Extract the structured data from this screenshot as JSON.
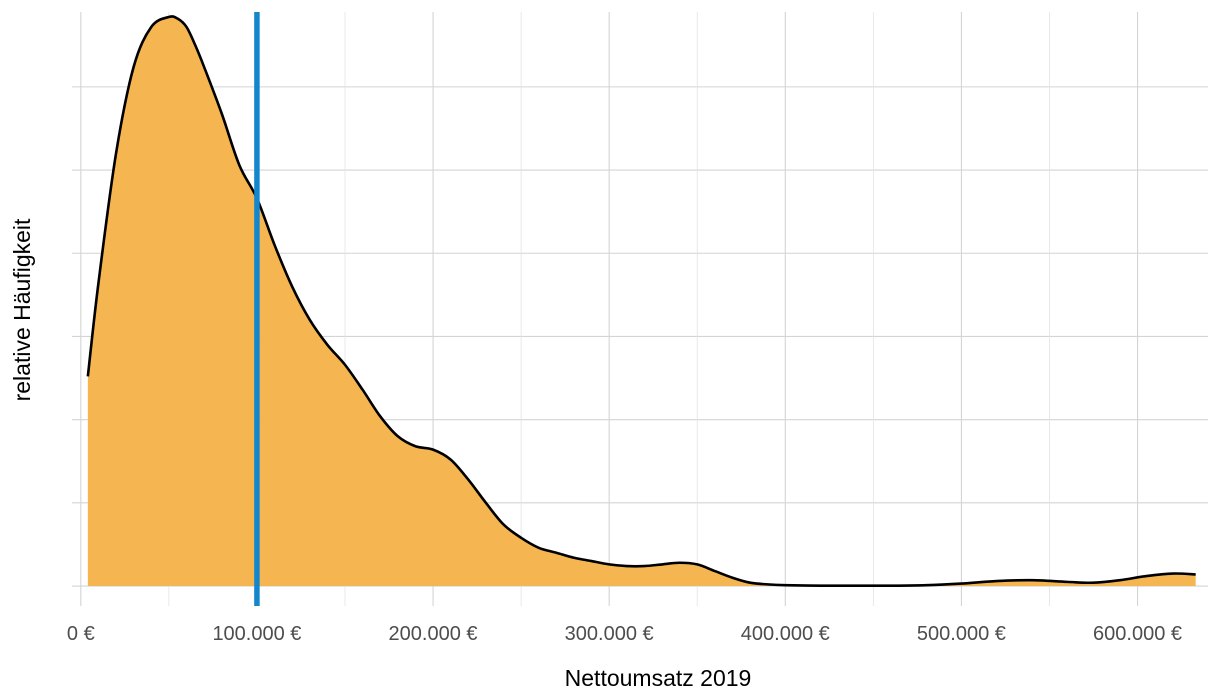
{
  "chart_data": {
    "type": "area",
    "xlabel": "Nettoumsatz 2019",
    "ylabel": "relative Häufigkeit",
    "xlim": [
      -5000,
      640000
    ],
    "ylim": [
      -0.12,
      3.45
    ],
    "x_ticks": [
      {
        "value": 0,
        "label": "0 €"
      },
      {
        "value": 100000,
        "label": "100.000 €"
      },
      {
        "value": 200000,
        "label": "200.000 €"
      },
      {
        "value": 300000,
        "label": "300.000 €"
      },
      {
        "value": 400000,
        "label": "400.000 €"
      },
      {
        "value": 500000,
        "label": "500.000 €"
      },
      {
        "value": 600000,
        "label": "600.000 €"
      }
    ],
    "x_minor_ticks": [
      50000,
      150000,
      250000,
      350000,
      450000,
      550000
    ],
    "y_grid": [
      0,
      0.5,
      1,
      1.5,
      2,
      2.5,
      3
    ],
    "y_tick_labels_shown": false,
    "grid": true,
    "legend": "none",
    "fill_color": "#F5B44B",
    "line_color": "#000000",
    "vline": {
      "x": 100000,
      "color": "#1487CC"
    },
    "density": {
      "x": [
        4000,
        10000,
        20000,
        30000,
        40000,
        50000,
        55000,
        60000,
        65000,
        70000,
        80000,
        90000,
        100000,
        110000,
        120000,
        130000,
        140000,
        150000,
        160000,
        170000,
        180000,
        190000,
        200000,
        210000,
        220000,
        230000,
        240000,
        250000,
        260000,
        270000,
        280000,
        290000,
        300000,
        310000,
        320000,
        330000,
        340000,
        350000,
        360000,
        370000,
        380000,
        390000,
        400000,
        420000,
        440000,
        460000,
        480000,
        500000,
        520000,
        540000,
        560000,
        575000,
        590000,
        605000,
        620000,
        633000
      ],
      "y": [
        1.26,
        1.82,
        2.6,
        3.12,
        3.36,
        3.42,
        3.41,
        3.36,
        3.25,
        3.12,
        2.84,
        2.53,
        2.33,
        2.05,
        1.8,
        1.6,
        1.45,
        1.33,
        1.18,
        1.02,
        0.9,
        0.84,
        0.82,
        0.76,
        0.64,
        0.5,
        0.37,
        0.29,
        0.23,
        0.2,
        0.17,
        0.15,
        0.13,
        0.12,
        0.12,
        0.13,
        0.14,
        0.13,
        0.09,
        0.05,
        0.02,
        0.01,
        0.005,
        0.002,
        0.002,
        0.002,
        0.005,
        0.015,
        0.03,
        0.035,
        0.025,
        0.02,
        0.035,
        0.06,
        0.075,
        0.07
      ]
    }
  }
}
